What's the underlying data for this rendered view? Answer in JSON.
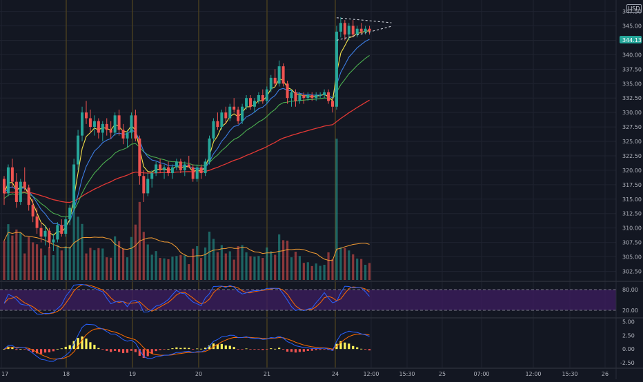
{
  "currency": "USD",
  "last_price": "344.13",
  "colors": {
    "background": "#131722",
    "grid": "#1f2330",
    "up": "#26a69a",
    "down": "#ef5350",
    "ema_fast": "#f5e24b",
    "ema_mid": "#3d7de3",
    "ema_slow": "#4caf50",
    "ema_long": "#e53935",
    "volume_ma": "#f39c33",
    "stoch_k": "#2962ff",
    "stoch_d": "#ff6d00",
    "stoch_band": "#3b1d5c",
    "macd_line": "#2962ff",
    "signal_line": "#ff6d00",
    "hist_up": "#fff35c",
    "hist_down": "#ef5350",
    "last_price_label": "#26a69a",
    "session_line": "#4a4020"
  },
  "chart_data": {
    "type": "candlestick",
    "price_axis": {
      "ylim": [
        301,
        349
      ],
      "ticks": [
        "302.50",
        "305.00",
        "307.50",
        "310.00",
        "312.50",
        "315.00",
        "317.50",
        "320.00",
        "322.50",
        "325.00",
        "327.50",
        "330.00",
        "332.50",
        "335.00",
        "337.50",
        "340.00",
        "342.50",
        "345.00",
        "347.50"
      ]
    },
    "time_axis": {
      "labels": [
        "17",
        "18",
        "19",
        "20",
        "21",
        "24",
        "12:00",
        "15:30",
        "25",
        "07:00",
        "12:00",
        "15:30",
        "26"
      ]
    },
    "candles": [
      [
        318.5,
        319.0,
        314.0,
        316.0
      ],
      [
        316.0,
        321.0,
        315.5,
        320.5
      ],
      [
        320.5,
        322.0,
        317.0,
        318.0
      ],
      [
        318.0,
        319.5,
        313.5,
        314.5
      ],
      [
        314.5,
        318.5,
        314.0,
        318.0
      ],
      [
        318.0,
        320.5,
        316.5,
        317.0
      ],
      [
        317.0,
        317.5,
        313.0,
        314.0
      ],
      [
        314.0,
        315.0,
        311.0,
        312.0
      ],
      [
        312.0,
        313.5,
        309.0,
        310.0
      ],
      [
        310.0,
        311.0,
        307.5,
        308.5
      ],
      [
        308.5,
        310.5,
        307.0,
        309.5
      ],
      [
        309.5,
        310.0,
        306.5,
        307.5
      ],
      [
        307.5,
        309.0,
        306.0,
        308.0
      ],
      [
        308.0,
        311.0,
        307.5,
        310.5
      ],
      [
        310.5,
        311.5,
        308.5,
        309.0
      ],
      [
        309.0,
        312.0,
        308.5,
        311.5
      ],
      [
        311.5,
        314.0,
        310.5,
        313.5
      ],
      [
        313.5,
        322.0,
        313.0,
        321.0
      ],
      [
        321.0,
        327.0,
        320.0,
        326.0
      ],
      [
        326.0,
        331.0,
        325.0,
        330.0
      ],
      [
        330.0,
        332.0,
        328.0,
        329.0
      ],
      [
        329.0,
        330.5,
        326.5,
        327.5
      ],
      [
        327.5,
        329.5,
        326.0,
        328.5
      ],
      [
        328.5,
        329.0,
        325.5,
        326.5
      ],
      [
        326.5,
        328.5,
        325.0,
        328.0
      ],
      [
        328.0,
        329.0,
        326.0,
        327.0
      ],
      [
        327.0,
        328.5,
        325.5,
        326.5
      ],
      [
        326.5,
        330.0,
        326.0,
        329.5
      ],
      [
        329.5,
        330.5,
        326.0,
        327.0
      ],
      [
        327.0,
        328.0,
        324.5,
        325.5
      ],
      [
        325.5,
        327.0,
        324.0,
        326.5
      ],
      [
        326.5,
        330.0,
        325.5,
        329.5
      ],
      [
        329.5,
        330.5,
        325.0,
        325.5
      ],
      [
        325.5,
        326.0,
        317.5,
        319.0
      ],
      [
        319.0,
        320.0,
        314.5,
        316.0
      ],
      [
        316.0,
        319.5,
        315.5,
        318.5
      ],
      [
        318.5,
        320.0,
        317.0,
        319.5
      ],
      [
        319.5,
        321.5,
        319.0,
        321.0
      ],
      [
        321.0,
        322.0,
        319.5,
        320.0
      ],
      [
        320.0,
        321.0,
        318.5,
        320.5
      ],
      [
        320.5,
        321.5,
        319.0,
        319.5
      ],
      [
        319.5,
        321.0,
        318.5,
        320.5
      ],
      [
        320.5,
        322.0,
        320.0,
        321.5
      ],
      [
        321.5,
        322.0,
        319.5,
        320.0
      ],
      [
        320.0,
        321.5,
        319.0,
        321.0
      ],
      [
        321.0,
        322.5,
        320.5,
        320.5
      ],
      [
        320.5,
        321.0,
        318.0,
        318.5
      ],
      [
        318.5,
        321.0,
        318.0,
        320.5
      ],
      [
        320.5,
        321.0,
        318.5,
        319.5
      ],
      [
        319.5,
        322.0,
        319.0,
        321.5
      ],
      [
        321.5,
        326.0,
        321.0,
        325.5
      ],
      [
        325.5,
        329.0,
        325.0,
        328.5
      ],
      [
        328.5,
        330.0,
        327.0,
        327.5
      ],
      [
        327.5,
        330.5,
        327.0,
        330.0
      ],
      [
        330.0,
        331.0,
        328.0,
        329.0
      ],
      [
        329.0,
        331.5,
        328.5,
        331.0
      ],
      [
        331.0,
        332.5,
        330.0,
        330.5
      ],
      [
        330.5,
        331.0,
        328.0,
        328.5
      ],
      [
        328.5,
        331.5,
        328.0,
        331.0
      ],
      [
        331.0,
        333.0,
        330.5,
        332.5
      ],
      [
        332.5,
        333.0,
        330.5,
        331.0
      ],
      [
        331.0,
        332.5,
        330.0,
        332.0
      ],
      [
        332.0,
        333.5,
        331.5,
        333.0
      ],
      [
        333.0,
        334.0,
        331.5,
        332.0
      ],
      [
        332.0,
        334.5,
        331.5,
        334.0
      ],
      [
        334.0,
        336.5,
        333.5,
        336.0
      ],
      [
        336.0,
        337.5,
        334.5,
        335.0
      ],
      [
        335.0,
        339.0,
        334.5,
        338.0
      ],
      [
        338.0,
        338.5,
        334.5,
        335.0
      ],
      [
        335.0,
        335.5,
        331.5,
        332.5
      ],
      [
        332.5,
        334.0,
        331.0,
        333.5
      ],
      [
        333.5,
        334.0,
        331.0,
        332.0
      ],
      [
        332.0,
        333.5,
        331.5,
        333.0
      ],
      [
        333.0,
        333.5,
        331.5,
        332.5
      ],
      [
        332.5,
        333.5,
        332.0,
        333.0
      ],
      [
        333.0,
        333.5,
        332.0,
        332.5
      ],
      [
        332.5,
        333.5,
        332.0,
        333.0
      ],
      [
        333.0,
        333.5,
        332.5,
        333.0
      ],
      [
        333.0,
        334.0,
        332.5,
        333.5
      ],
      [
        333.5,
        334.0,
        331.5,
        332.0
      ],
      [
        332.0,
        332.5,
        330.0,
        331.0
      ],
      [
        331.0,
        345.0,
        330.5,
        344.0
      ],
      [
        344.0,
        346.5,
        343.0,
        345.5
      ],
      [
        345.5,
        346.0,
        342.5,
        343.5
      ],
      [
        343.5,
        345.5,
        342.5,
        345.0
      ],
      [
        345.0,
        346.0,
        343.0,
        343.5
      ],
      [
        343.5,
        345.0,
        343.0,
        344.5
      ],
      [
        344.5,
        345.5,
        343.5,
        344.0
      ],
      [
        344.0,
        345.0,
        343.5,
        344.5
      ],
      [
        344.5,
        345.0,
        343.5,
        344.13
      ]
    ],
    "triangle_pattern": {
      "upper": [
        [
          81,
          346.4
        ],
        [
          92,
          345.6
        ]
      ],
      "lower": [
        [
          81,
          342.5
        ],
        [
          92,
          344.8
        ]
      ]
    },
    "stoch_axis": {
      "ylim": [
        0,
        100
      ],
      "ticks": [
        "20.00",
        "80.00"
      ],
      "band": [
        20,
        80
      ]
    },
    "macd_axis": {
      "ylim": [
        -3.4,
        5.6
      ],
      "ticks": [
        "-2.50",
        "0.00",
        "2.50",
        "5.00"
      ]
    }
  }
}
